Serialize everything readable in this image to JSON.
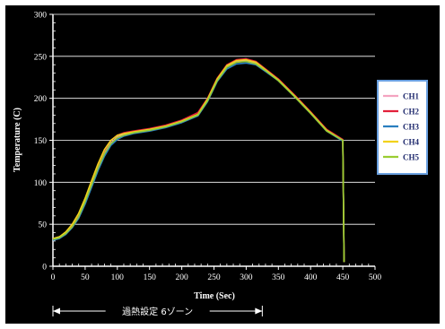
{
  "chart_data": {
    "type": "line",
    "xlabel": "Time (Sec)",
    "ylabel": "Temperature (C)",
    "xlim": [
      0,
      500
    ],
    "ylim": [
      0,
      300
    ],
    "x_ticks": [
      0,
      50,
      100,
      150,
      200,
      250,
      300,
      350,
      400,
      450,
      500
    ],
    "y_ticks": [
      0,
      50,
      100,
      150,
      200,
      250,
      300
    ],
    "grid": "horizontal",
    "legend_position": "right",
    "series": [
      {
        "name": "CH1",
        "color": "#f4a3c0",
        "x": [
          0,
          10,
          20,
          30,
          40,
          50,
          60,
          70,
          80,
          90,
          100,
          110,
          125,
          150,
          175,
          200,
          225,
          240,
          255,
          270,
          285,
          300,
          315,
          330,
          350,
          375,
          400,
          425,
          450,
          451,
          452
        ],
        "y": [
          33,
          35,
          40,
          48,
          60,
          78,
          98,
          118,
          135,
          147,
          154,
          157,
          159,
          162,
          166,
          172,
          180,
          198,
          222,
          238,
          244,
          245,
          242,
          233,
          222,
          203,
          183,
          162,
          150,
          80,
          5
        ]
      },
      {
        "name": "CH2",
        "color": "#e2203a",
        "x": [
          0,
          10,
          20,
          30,
          40,
          50,
          60,
          70,
          80,
          90,
          100,
          110,
          125,
          150,
          175,
          200,
          225,
          240,
          255,
          270,
          285,
          300,
          315,
          330,
          350,
          375,
          400,
          425,
          450,
          451,
          452
        ],
        "y": [
          32,
          34,
          40,
          49,
          62,
          80,
          101,
          121,
          138,
          150,
          156,
          159,
          161,
          164,
          168,
          174,
          183,
          200,
          224,
          240,
          246,
          247,
          244,
          235,
          223,
          204,
          184,
          163,
          151,
          80,
          5
        ]
      },
      {
        "name": "CH3",
        "color": "#2a7fbf",
        "x": [
          0,
          10,
          20,
          30,
          40,
          50,
          60,
          70,
          80,
          90,
          100,
          110,
          125,
          150,
          175,
          200,
          225,
          240,
          255,
          270,
          285,
          300,
          315,
          330,
          350,
          375,
          400,
          425,
          450,
          451,
          452
        ],
        "y": [
          31,
          33,
          38,
          46,
          57,
          74,
          94,
          114,
          131,
          144,
          151,
          155,
          158,
          161,
          165,
          171,
          179,
          196,
          220,
          235,
          241,
          242,
          240,
          232,
          221,
          202,
          182,
          161,
          149,
          80,
          5
        ]
      },
      {
        "name": "CH4",
        "color": "#f2d21c",
        "x": [
          0,
          10,
          20,
          30,
          40,
          50,
          60,
          70,
          80,
          90,
          100,
          110,
          125,
          150,
          175,
          200,
          225,
          240,
          255,
          270,
          285,
          300,
          315,
          330,
          350,
          375,
          400,
          425,
          450,
          451,
          452
        ],
        "y": [
          33,
          35,
          41,
          50,
          63,
          81,
          102,
          122,
          139,
          150,
          156,
          158,
          160,
          163,
          167,
          173,
          181,
          199,
          223,
          239,
          245,
          246,
          243,
          234,
          222,
          203,
          183,
          162,
          150,
          80,
          5
        ]
      },
      {
        "name": "CH5",
        "color": "#9acd32",
        "x": [
          0,
          10,
          20,
          30,
          40,
          50,
          60,
          70,
          80,
          90,
          100,
          110,
          125,
          150,
          175,
          200,
          225,
          240,
          255,
          270,
          285,
          300,
          315,
          330,
          350,
          375,
          400,
          425,
          450,
          451,
          452
        ],
        "y": [
          32,
          34,
          39,
          47,
          59,
          77,
          97,
          117,
          134,
          146,
          153,
          156,
          159,
          162,
          166,
          172,
          180,
          197,
          221,
          237,
          243,
          244,
          241,
          233,
          221,
          202,
          182,
          161,
          150,
          80,
          5
        ]
      }
    ],
    "annotations": [
      {
        "text": "過熱設定 6ゾーン",
        "x_start": 0,
        "x_end": 325
      }
    ]
  },
  "colors": {
    "background": "#000000",
    "axis": "#ffffff",
    "grid": "#ffffff",
    "legend_background": "#ffffff",
    "legend_border": "#6aa0e0"
  }
}
